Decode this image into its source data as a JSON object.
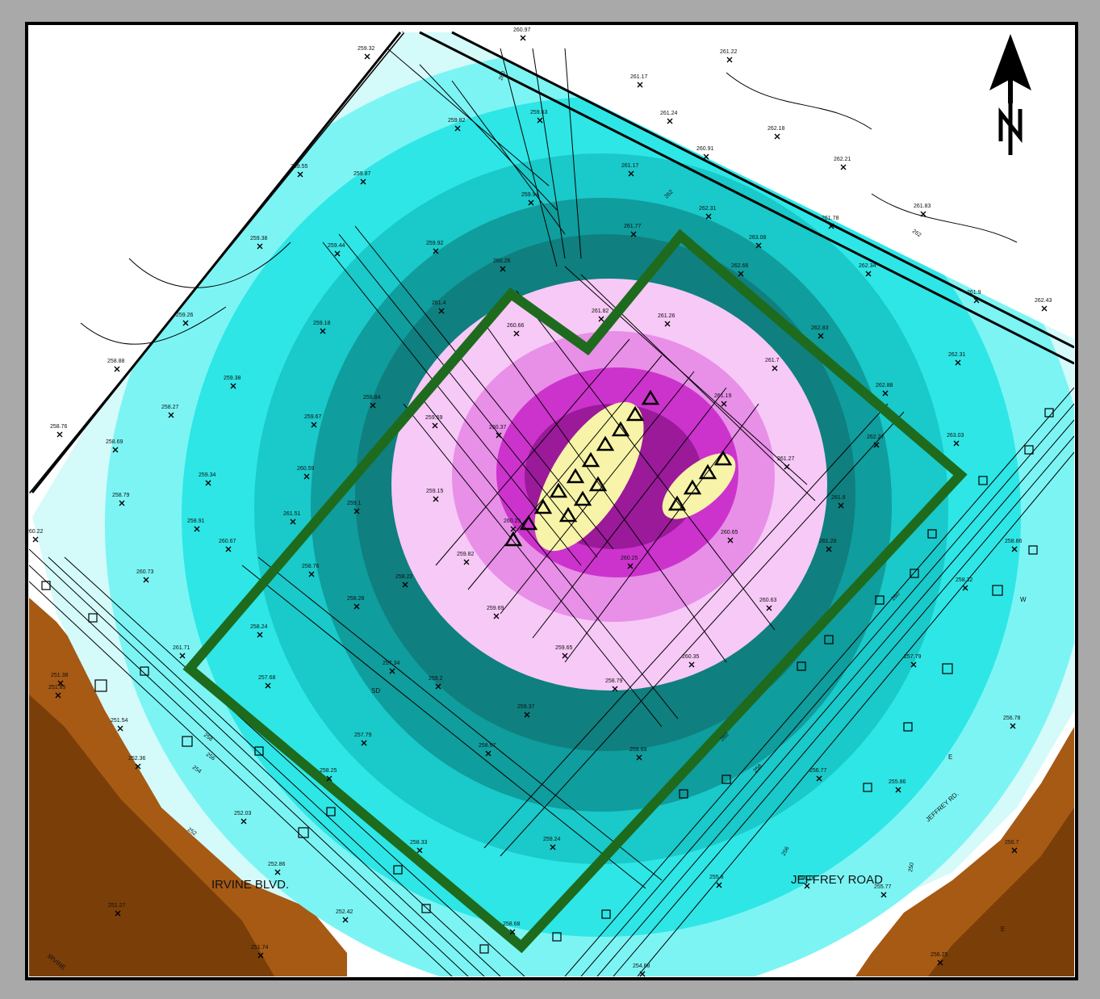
{
  "colors": {
    "outer_bg": "#a9a9a9",
    "paper": "#ffffff",
    "brown_dark": "#7a3e08",
    "brown_light": "#a65a14",
    "zone_1": "#d4fafa",
    "zone_2": "#7cf4f4",
    "zone_3": "#2ee6e6",
    "zone_4": "#1ac9c9",
    "zone_5": "#0f9d9d",
    "zone_6": "#0f7f7f",
    "zone_7": "#f6c9f6",
    "zone_8": "#e88fe8",
    "zone_9": "#cc33cc",
    "zone_10": "#9a1a9a",
    "zone_core": "#f7f3a8",
    "boundary_green": "#1e6b1e"
  },
  "icons": {
    "north_arrow": "north-arrow-icon",
    "survey_point": "x-mark-icon",
    "well": "triangle-icon",
    "building": "square-icon"
  },
  "north_label": "N",
  "roads": {
    "irvine_blvd": "IRVINE  BLVD.",
    "jeffrey_road": "JEFFREY ROAD",
    "jeffrey_rd": "JEFFREY RD.",
    "irvine_corner": "IRVINE"
  },
  "markers": {
    "sd": "SD",
    "w": "W",
    "e": "E"
  },
  "contour_labels": [
    "260",
    "262",
    "262",
    "258",
    "256",
    "254",
    "252",
    "260",
    "258",
    "256",
    "250",
    "260"
  ],
  "elevations": [
    {
      "v": "259.32"
    },
    {
      "v": "260.97"
    },
    {
      "v": "261.17"
    },
    {
      "v": "261.22"
    },
    {
      "v": "259.63"
    },
    {
      "v": "261.24"
    },
    {
      "v": "259.82"
    },
    {
      "v": "262.18"
    },
    {
      "v": "260.91"
    },
    {
      "v": "261.17"
    },
    {
      "v": "262.21"
    },
    {
      "v": "259.55"
    },
    {
      "v": "259.87"
    },
    {
      "v": "259.94"
    },
    {
      "v": "262.31"
    },
    {
      "v": "261.83"
    },
    {
      "v": "261.78"
    },
    {
      "v": "261.77"
    },
    {
      "v": "263.08"
    },
    {
      "v": "259.38"
    },
    {
      "v": "259.44"
    },
    {
      "v": "259.92"
    },
    {
      "v": "262.66"
    },
    {
      "v": "262.34"
    },
    {
      "v": "260.26"
    },
    {
      "v": "261.4"
    },
    {
      "v": "261.9"
    },
    {
      "v": "262.43"
    },
    {
      "v": "259.26"
    },
    {
      "v": "261.82"
    },
    {
      "v": "261.26"
    },
    {
      "v": "260.66"
    },
    {
      "v": "259.18"
    },
    {
      "v": "262.83"
    },
    {
      "v": "258.88"
    },
    {
      "v": "261.7"
    },
    {
      "v": "262.31"
    },
    {
      "v": "259.38"
    },
    {
      "v": "259.84"
    },
    {
      "v": "262.88"
    },
    {
      "v": "261.19"
    },
    {
      "v": "258.27"
    },
    {
      "v": "259.67"
    },
    {
      "v": "260.37"
    },
    {
      "v": "258.76"
    },
    {
      "v": "259.69"
    },
    {
      "v": "262.27"
    },
    {
      "v": "263.03"
    },
    {
      "v": "258.69"
    },
    {
      "v": "259.34"
    },
    {
      "v": "260.59"
    },
    {
      "v": "261.27"
    },
    {
      "v": "258.79"
    },
    {
      "v": "259.15"
    },
    {
      "v": "259.1"
    },
    {
      "v": "261.8"
    },
    {
      "v": "258.91"
    },
    {
      "v": "261.51"
    },
    {
      "v": "260.25"
    },
    {
      "v": "260.65"
    },
    {
      "v": "258.86"
    },
    {
      "v": "260.22"
    },
    {
      "v": "260.67"
    },
    {
      "v": "261.28"
    },
    {
      "v": "259.82"
    },
    {
      "v": "260.25"
    },
    {
      "v": "260.73"
    },
    {
      "v": "258.76"
    },
    {
      "v": "258.22"
    },
    {
      "v": "258.32"
    },
    {
      "v": "258.28"
    },
    {
      "v": "259.69"
    },
    {
      "v": "260.63"
    },
    {
      "v": "258.24"
    },
    {
      "v": "261.71"
    },
    {
      "v": "259.65"
    },
    {
      "v": "257.79"
    },
    {
      "v": "260.35"
    },
    {
      "v": "257.68"
    },
    {
      "v": "257.34"
    },
    {
      "v": "251.38"
    },
    {
      "v": "259.2"
    },
    {
      "v": "258.79"
    },
    {
      "v": "251.85"
    },
    {
      "v": "259.37"
    },
    {
      "v": "251.54"
    },
    {
      "v": "256.78"
    },
    {
      "v": "257.79"
    },
    {
      "v": "258.97"
    },
    {
      "v": "259.69"
    },
    {
      "v": "252.36"
    },
    {
      "v": "258.25"
    },
    {
      "v": "256.77"
    },
    {
      "v": "255.86"
    },
    {
      "v": "252.03"
    },
    {
      "v": "259.24"
    },
    {
      "v": "258.33"
    },
    {
      "v": "256.7"
    },
    {
      "v": "252.86"
    },
    {
      "v": "255.8"
    },
    {
      "v": "255.77"
    },
    {
      "v": "251.27"
    },
    {
      "v": "252.42"
    },
    {
      "v": "258.68"
    },
    {
      "v": "251.74"
    },
    {
      "v": "254.68"
    },
    {
      "v": "256.25"
    },
    {
      "v": "256.19"
    }
  ]
}
